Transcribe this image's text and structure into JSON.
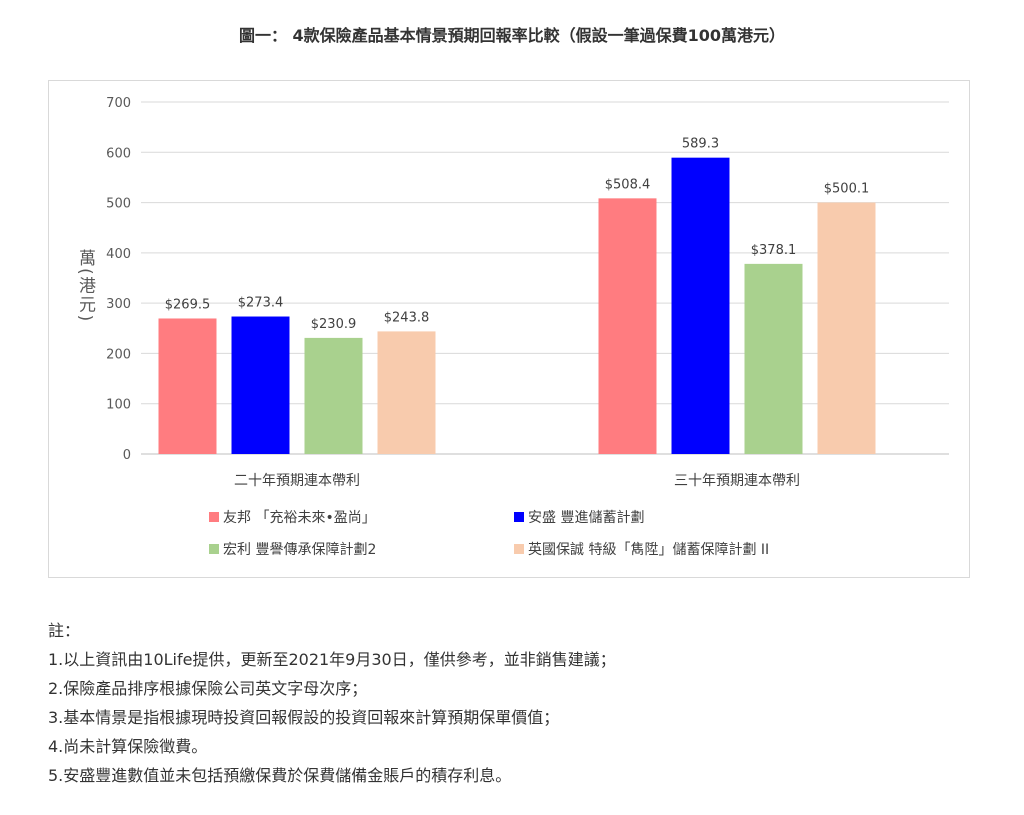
{
  "title": "圖一： 4款保險產品基本情景預期回報率比較（假設一筆過保費100萬港元）",
  "chart_data": {
    "type": "bar",
    "categories": [
      "二十年預期連本帶利",
      "三十年預期連本帶利"
    ],
    "ylabel": "萬(港元)",
    "ylim": [
      0,
      700
    ],
    "yticks": [
      0,
      100,
      200,
      300,
      400,
      500,
      600,
      700
    ],
    "grid": true,
    "legend_position": "bottom",
    "series": [
      {
        "name": "友邦 「充裕未來•盈尚」",
        "color": "#ff7c80",
        "values": [
          269.5,
          508.4
        ],
        "labels": [
          "$269.5",
          "$508.4"
        ]
      },
      {
        "name": "安盛 豐進儲蓄計劃",
        "color": "#0000ff",
        "values": [
          273.4,
          589.3
        ],
        "labels": [
          "$273.4",
          "589.3"
        ]
      },
      {
        "name": "宏利 豐譽傳承保障計劃2",
        "color": "#a9d18e",
        "values": [
          230.9,
          378.1
        ],
        "labels": [
          "$230.9",
          "$378.1"
        ]
      },
      {
        "name": "英國保誠 特級「雋陞」儲蓄保障計劃 II",
        "color": "#f8cbad",
        "values": [
          243.8,
          500.1
        ],
        "labels": [
          "$243.8",
          "$500.1"
        ]
      }
    ]
  },
  "notes": {
    "heading": "註：",
    "items": [
      "1.以上資訊由10Life提供，更新至2021年9月30日，僅供參考，並非銷售建議；",
      "2.保險產品排序根據保險公司英文字母次序；",
      "3.基本情景是指根據現時投資回報假設的投資回報來計算預期保單價值；",
      "4.尚未計算保險徵費。",
      "5.安盛豐進數值並未包括預繳保費於保費儲備金賬戶的積存利息。"
    ]
  }
}
